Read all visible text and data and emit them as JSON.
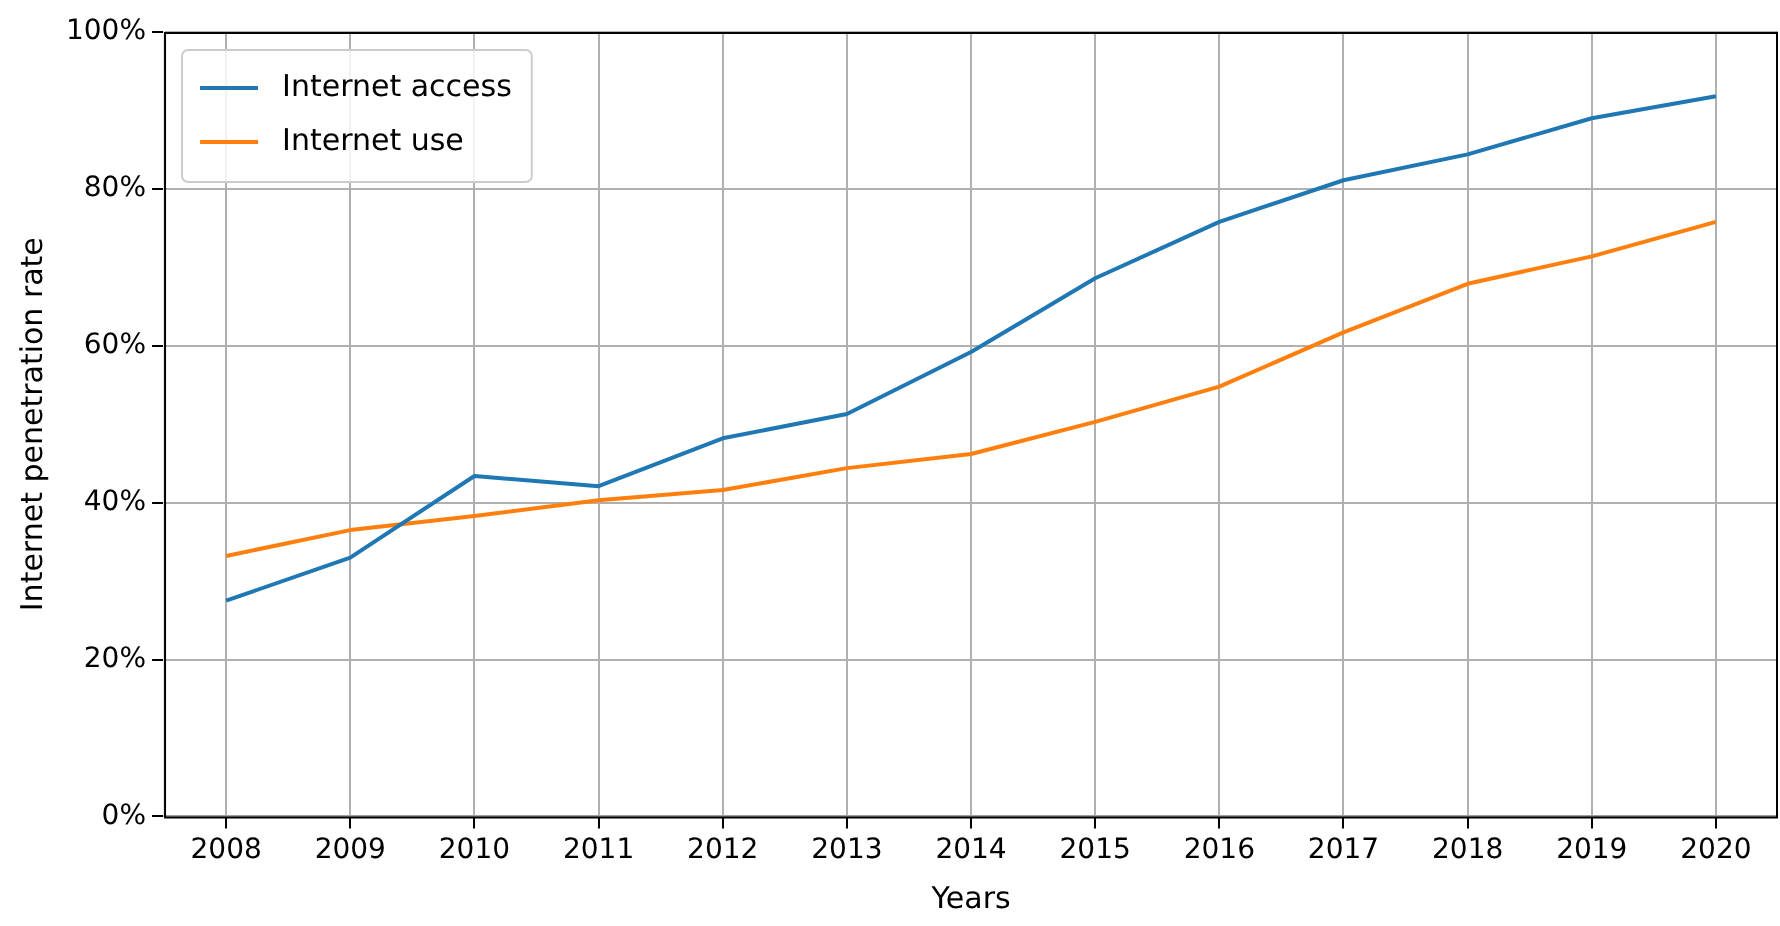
{
  "chart_data": {
    "type": "line",
    "xlabel": "Years",
    "ylabel": "Internet penetration rate",
    "categories": [
      "2008",
      "2009",
      "2010",
      "2011",
      "2012",
      "2013",
      "2014",
      "2015",
      "2016",
      "2017",
      "2018",
      "2019",
      "2020"
    ],
    "series": [
      {
        "name": "Internet access",
        "color": "#1f77b4",
        "values": [
          27.5,
          33,
          43.4,
          42.1,
          48.2,
          51.3,
          59.2,
          68.6,
          75.8,
          81.1,
          84.4,
          89,
          91.8
        ]
      },
      {
        "name": "Internet use",
        "color": "#ff7f0e",
        "values": [
          33.2,
          36.5,
          38.3,
          40.3,
          41.6,
          44.4,
          46.2,
          50.3,
          54.8,
          61.7,
          67.9,
          71.4,
          75.8
        ]
      }
    ],
    "ylim": [
      0,
      100
    ],
    "yticks": [
      {
        "value": 0,
        "label": "0%"
      },
      {
        "value": 20,
        "label": "20%"
      },
      {
        "value": 40,
        "label": "40%"
      },
      {
        "value": 60,
        "label": "60%"
      },
      {
        "value": 80,
        "label": "80%"
      },
      {
        "value": 100,
        "label": "100%"
      }
    ],
    "grid": true,
    "legend": "top left",
    "marker": "none",
    "line_style": "solid"
  }
}
